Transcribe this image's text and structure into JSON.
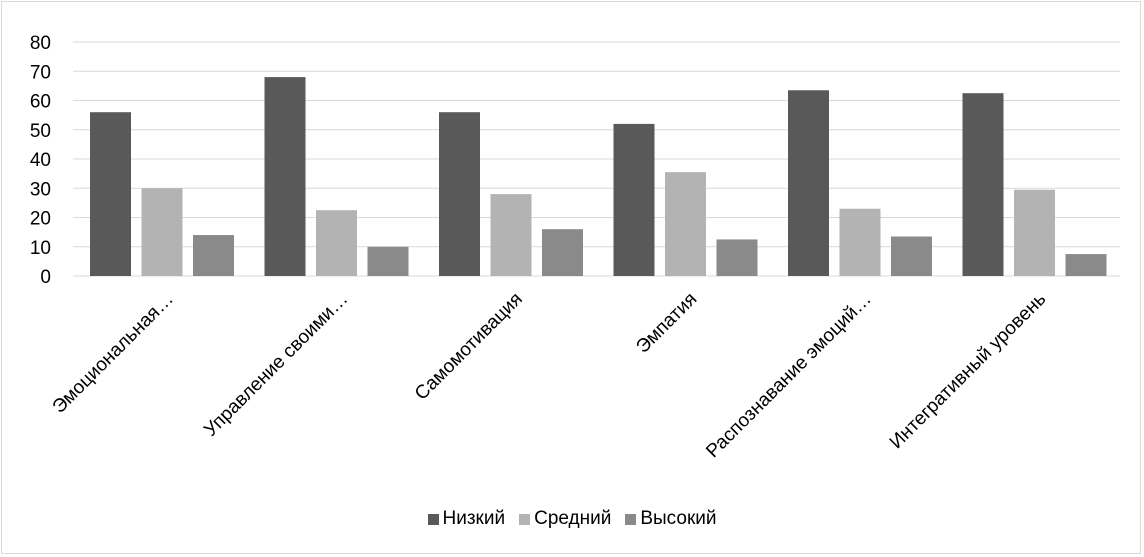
{
  "chart_data": {
    "type": "bar",
    "categories": [
      "Эмоциональная…",
      "Управление своими…",
      "Самомотивация",
      "Эмпатия",
      "Распознавание эмоций…",
      "Интегративный уровень"
    ],
    "series": [
      {
        "name": "Низкий",
        "color": "#595959",
        "values": [
          56,
          68,
          56,
          52,
          63.5,
          62.5
        ]
      },
      {
        "name": "Средний",
        "color": "#b3b3b3",
        "values": [
          30,
          22.5,
          28,
          35.5,
          23,
          29.5
        ]
      },
      {
        "name": "Высокий",
        "color": "#8a8a8a",
        "values": [
          14,
          10,
          16,
          12.5,
          13.5,
          7.5
        ]
      }
    ],
    "yticks": [
      "0",
      "10",
      "20",
      "30",
      "40",
      "50",
      "60",
      "70",
      "80"
    ],
    "ylim": [
      0,
      80
    ],
    "grid": true,
    "legend_position": "bottom",
    "title": "",
    "xlabel": "",
    "ylabel": ""
  }
}
